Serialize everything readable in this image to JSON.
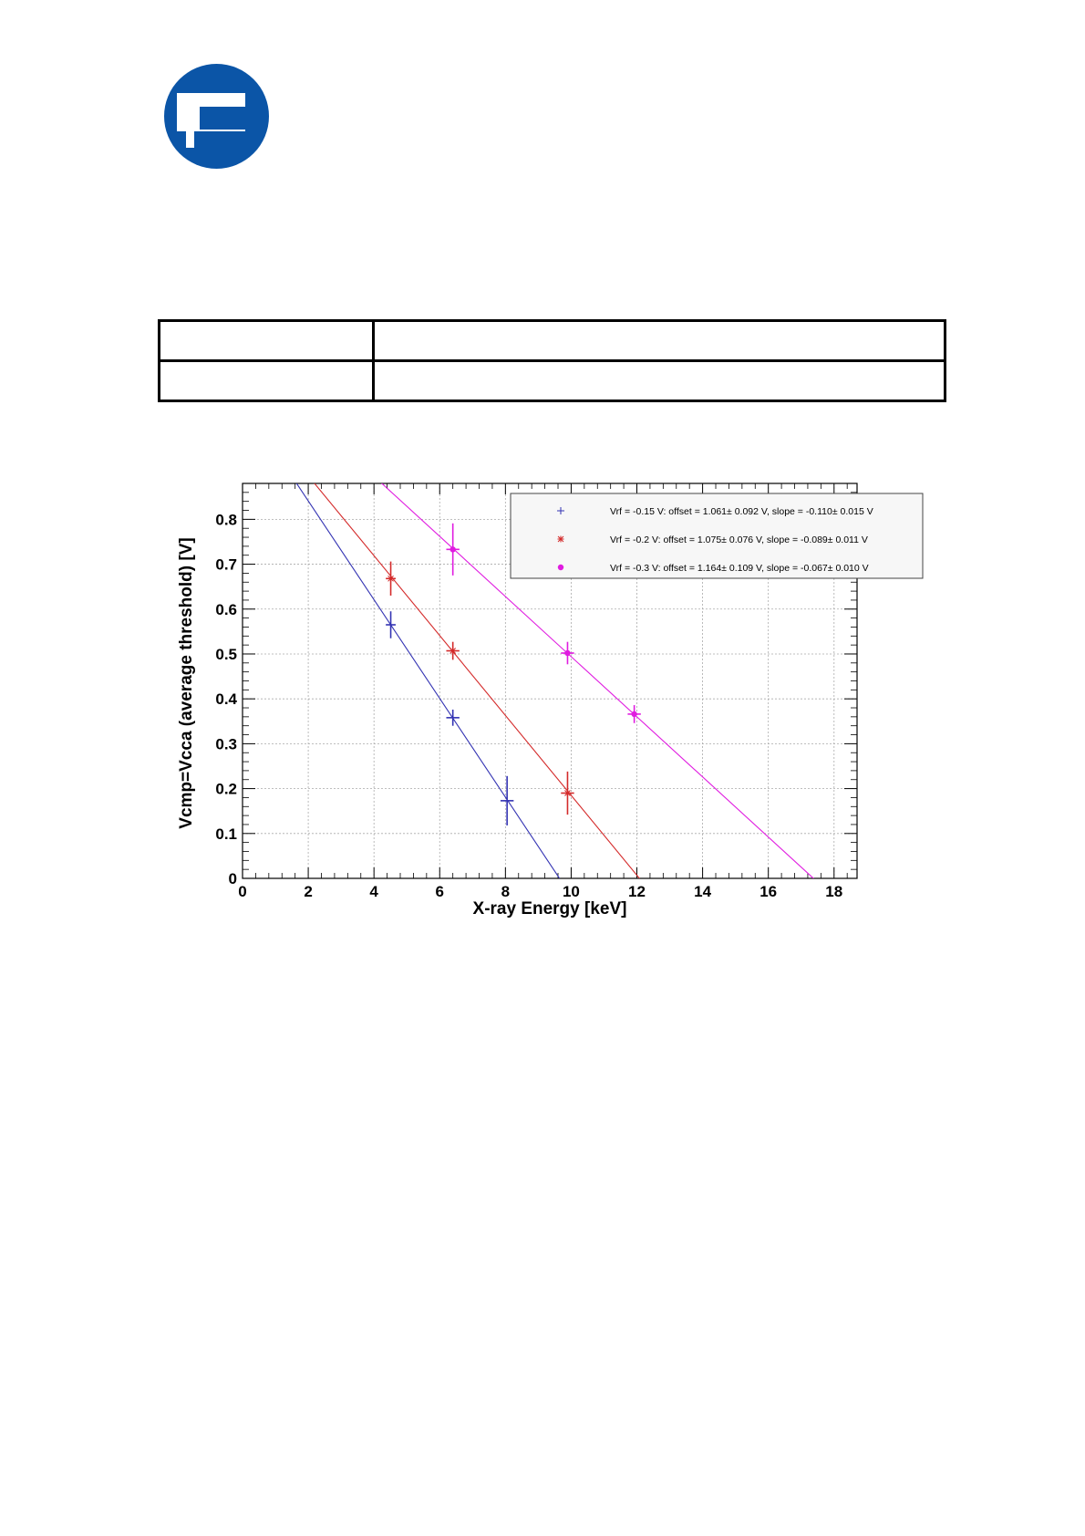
{
  "logo": {
    "icon": "institution-logo",
    "color": "#0b55a7"
  },
  "header_table": {
    "rows": [
      [
        "",
        ""
      ],
      [
        "",
        ""
      ]
    ]
  },
  "chart_data": {
    "type": "scatter",
    "title": "",
    "xlabel": "X-ray Energy [keV]",
    "ylabel": "Vcmp=Vcca (average threshold) [V]",
    "xlim": [
      0,
      18.7
    ],
    "ylim": [
      0,
      0.88
    ],
    "xticks": [
      0,
      2,
      4,
      6,
      8,
      10,
      12,
      14,
      16,
      18
    ],
    "yticks": [
      0,
      0.1,
      0.2,
      0.3,
      0.4,
      0.5,
      0.6,
      0.7,
      0.8
    ],
    "xtick_labels": [
      "0",
      "2",
      "4",
      "6",
      "8",
      "10",
      "12",
      "14",
      "16",
      "18"
    ],
    "ytick_labels": [
      "0",
      "0.1",
      "0.2",
      "0.3",
      "0.4",
      "0.5",
      "0.6",
      "0.7",
      "0.8"
    ],
    "grid": true,
    "legend_position": "top-right",
    "series": [
      {
        "name": "Vrf = -0.15 V: offset = 1.061± 0.092 V, slope = -0.110± 0.015 V",
        "color": "#3333b3",
        "marker": "plus",
        "points": [
          {
            "x": 4.51,
            "y": 0.565,
            "yerr": 0.03,
            "xerr": 0.15
          },
          {
            "x": 6.4,
            "y": 0.358,
            "yerr": 0.018,
            "xerr": 0.2
          },
          {
            "x": 8.05,
            "y": 0.173,
            "yerr": 0.055,
            "xerr": 0.2
          }
        ],
        "fit": {
          "offset": 1.061,
          "slope": -0.11
        }
      },
      {
        "name": "Vrf = -0.2 V: offset = 1.075± 0.076 V, slope = -0.089± 0.011 V",
        "color": "#d42a2a",
        "marker": "star",
        "points": [
          {
            "x": 4.51,
            "y": 0.668,
            "yerr": 0.038,
            "xerr": 0.15
          },
          {
            "x": 6.4,
            "y": 0.507,
            "yerr": 0.02,
            "xerr": 0.2
          },
          {
            "x": 9.89,
            "y": 0.19,
            "yerr": 0.048,
            "xerr": 0.2
          }
        ],
        "fit": {
          "offset": 1.075,
          "slope": -0.089
        }
      },
      {
        "name": "Vrf = -0.3 V: offset = 1.164± 0.109 V, slope = -0.067± 0.010 V",
        "color": "#e01ce0",
        "marker": "dot",
        "points": [
          {
            "x": 6.4,
            "y": 0.733,
            "yerr": 0.058,
            "xerr": 0.2
          },
          {
            "x": 9.89,
            "y": 0.502,
            "yerr": 0.025,
            "xerr": 0.2
          },
          {
            "x": 11.92,
            "y": 0.366,
            "yerr": 0.02,
            "xerr": 0.2
          }
        ],
        "fit": {
          "offset": 1.164,
          "slope": -0.067
        }
      }
    ]
  }
}
